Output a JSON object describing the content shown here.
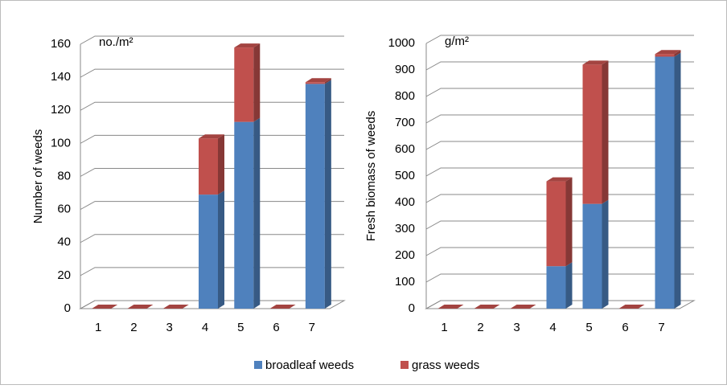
{
  "chart_data": [
    {
      "type": "bar3d_stacked",
      "axis_label": "Number  of weeds",
      "unit_label": "no./m²",
      "categories": [
        "1",
        "2",
        "3",
        "4",
        "5",
        "6",
        "7"
      ],
      "series": [
        {
          "name": "broadleaf weeds",
          "color": "#4f81bd",
          "values": [
            0,
            0,
            0,
            69,
            113,
            0,
            136
          ]
        },
        {
          "name": "grass weeds",
          "color": "#c0504d",
          "values": [
            0,
            0,
            0,
            34,
            45,
            0,
            1
          ]
        }
      ],
      "ylim": [
        0,
        160
      ],
      "yticks": [
        0,
        20,
        40,
        60,
        80,
        100,
        120,
        140,
        160
      ],
      "grid": true
    },
    {
      "type": "bar3d_stacked",
      "axis_label": "Fresh biomass of weeds",
      "unit_label": "g/m²",
      "categories": [
        "1",
        "2",
        "3",
        "4",
        "5",
        "6",
        "7"
      ],
      "series": [
        {
          "color": "#4f81bd",
          "values": [
            0,
            0,
            0,
            160,
            395,
            0,
            950
          ]
        },
        {
          "color": "#c0504d",
          "values": [
            0,
            0,
            0,
            320,
            525,
            0,
            10
          ]
        }
      ],
      "ylim": [
        0,
        1000
      ],
      "yticks": [
        0,
        100,
        200,
        300,
        400,
        500,
        600,
        700,
        800,
        900,
        1000
      ],
      "grid": true
    }
  ]
}
